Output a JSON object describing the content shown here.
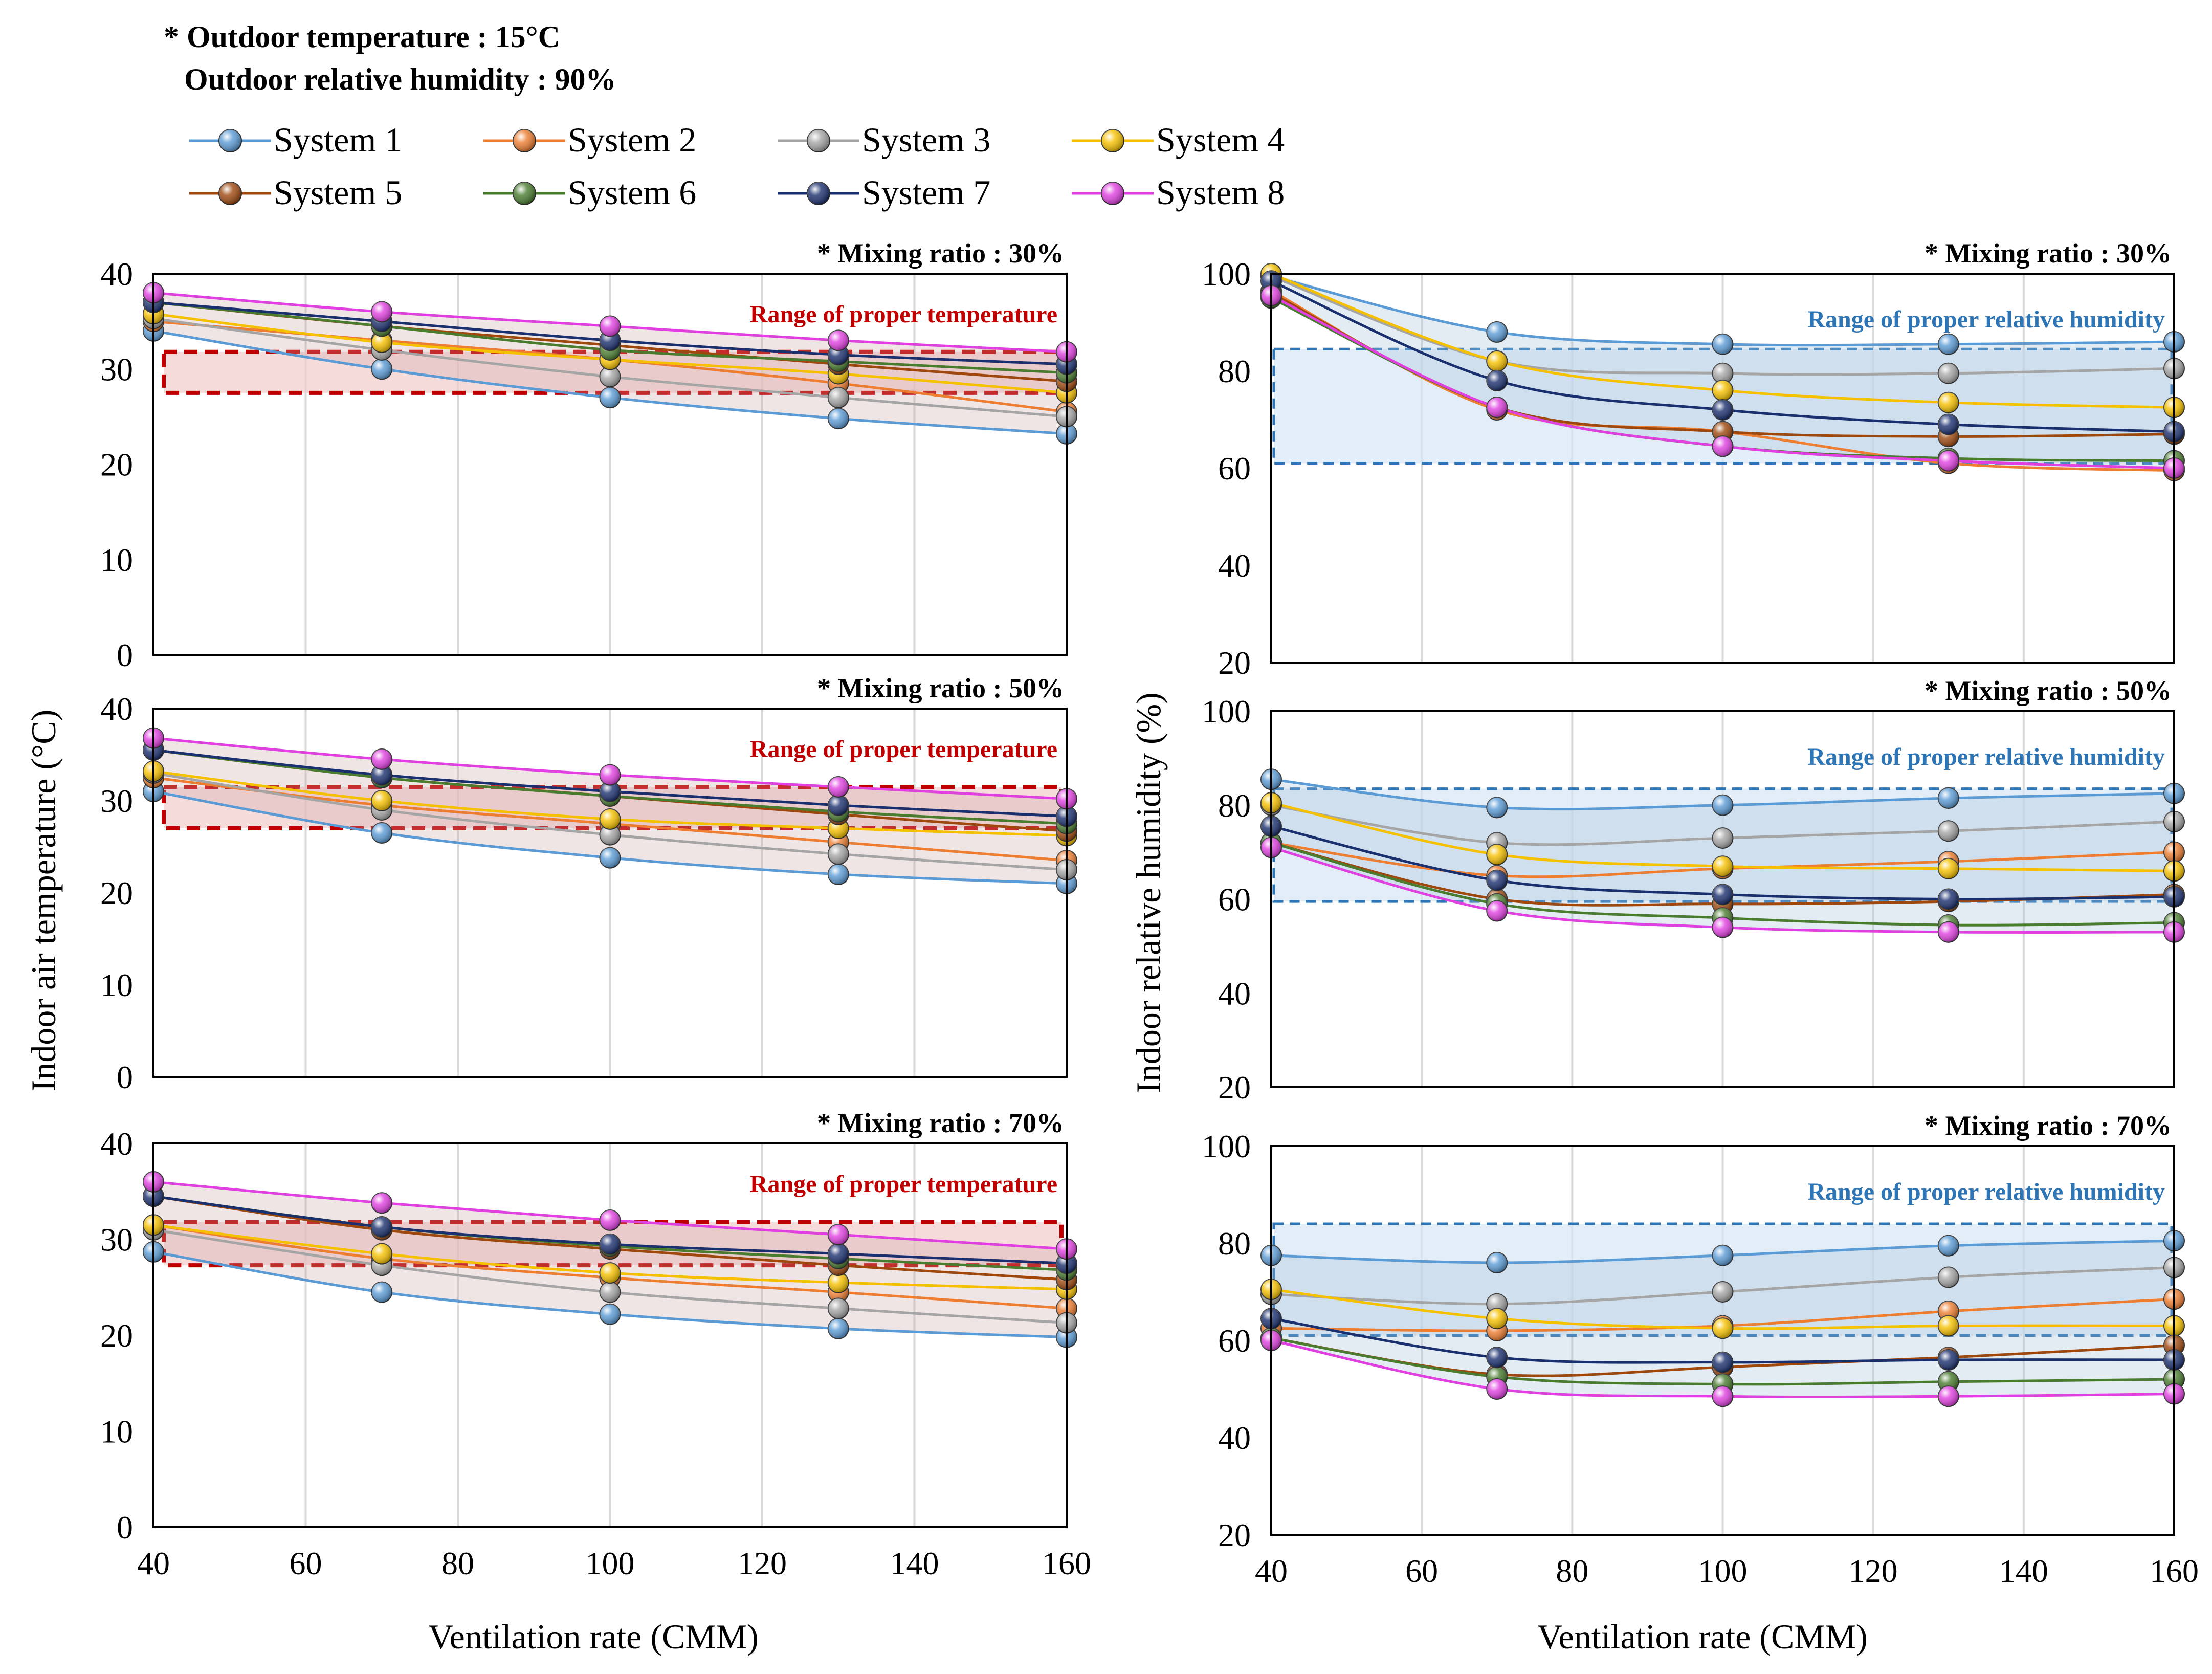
{
  "conditions": {
    "line1": "* Outdoor temperature : 15°C",
    "line2": "Outdoor relative humidity  : 90%"
  },
  "legend": [
    "System 1",
    "System 2",
    "System 3",
    "System 4",
    "System 5",
    "System 6",
    "System 7",
    "System 8"
  ],
  "colors": {
    "series": [
      "#5b9bd5",
      "#ed7d31",
      "#a5a5a5",
      "#f5c000",
      "#9e480e",
      "#4a7c2f",
      "#1a2f6e",
      "#e040e0"
    ],
    "temp_band_stroke": "#c00000",
    "temp_band_fill": "#f2cccc",
    "rh_band_stroke": "#2e75b6",
    "rh_band_fill": "#d6e5f4",
    "range_temp_label": "#c00000",
    "range_rh_label": "#2e75b6"
  },
  "axes": {
    "temp_ylabel": "Indoor air temperature (°C)",
    "rh_ylabel": "Indoor relative humidity (%)",
    "xlabel": "Ventilation rate (CMM)",
    "x_ticks": [
      "40",
      "60",
      "80",
      "100",
      "120",
      "140",
      "160"
    ],
    "temp_ticks": [
      "0",
      "10",
      "20",
      "30",
      "40"
    ],
    "rh_ticks": [
      "20",
      "40",
      "60",
      "80",
      "100"
    ]
  },
  "chart_data": [
    {
      "type": "line",
      "variable": "temperature",
      "title": "* Mixing ratio : 30%",
      "band_label": "Range of proper temperature",
      "band": [
        27.5,
        31.8
      ],
      "x": [
        40,
        70,
        100,
        130,
        160
      ],
      "xlim": [
        40,
        160
      ],
      "ylim": [
        0,
        40
      ],
      "series": [
        {
          "name": "System 1",
          "values": [
            34.0,
            30.0,
            27.0,
            24.8,
            23.2
          ]
        },
        {
          "name": "System 2",
          "values": [
            35.0,
            33.0,
            31.0,
            28.5,
            25.5
          ]
        },
        {
          "name": "System 3",
          "values": [
            35.3,
            32.0,
            29.2,
            27.0,
            25.0
          ]
        },
        {
          "name": "System 4",
          "values": [
            35.8,
            32.8,
            31.0,
            29.5,
            27.5
          ]
        },
        {
          "name": "System 5",
          "values": [
            37.0,
            34.5,
            32.5,
            30.5,
            28.7
          ]
        },
        {
          "name": "System 6",
          "values": [
            37.0,
            34.5,
            32.0,
            30.8,
            29.6
          ]
        },
        {
          "name": "System 7",
          "values": [
            37.0,
            35.0,
            33.0,
            31.5,
            30.5
          ]
        },
        {
          "name": "System 8",
          "values": [
            38.0,
            36.0,
            34.5,
            33.0,
            31.8
          ]
        }
      ]
    },
    {
      "type": "line",
      "variable": "temperature",
      "title": "* Mixing ratio : 50%",
      "band_label": "Range of proper temperature",
      "band": [
        27.0,
        31.5
      ],
      "x": [
        40,
        70,
        100,
        130,
        160
      ],
      "xlim": [
        40,
        160
      ],
      "ylim": [
        0,
        40
      ],
      "series": [
        {
          "name": "System 1",
          "values": [
            31.0,
            26.5,
            23.8,
            22.0,
            21.0
          ]
        },
        {
          "name": "System 2",
          "values": [
            32.5,
            29.5,
            27.5,
            25.5,
            23.5
          ]
        },
        {
          "name": "System 3",
          "values": [
            33.0,
            29.0,
            26.3,
            24.2,
            22.5
          ]
        },
        {
          "name": "System 4",
          "values": [
            33.2,
            30.0,
            28.0,
            27.0,
            26.2
          ]
        },
        {
          "name": "System 5",
          "values": [
            35.5,
            32.5,
            30.5,
            28.5,
            26.7
          ]
        },
        {
          "name": "System 6",
          "values": [
            35.5,
            32.5,
            30.5,
            28.8,
            27.5
          ]
        },
        {
          "name": "System 7",
          "values": [
            35.5,
            32.8,
            31.0,
            29.5,
            28.3
          ]
        },
        {
          "name": "System 8",
          "values": [
            36.8,
            34.5,
            32.8,
            31.5,
            30.2
          ]
        }
      ]
    },
    {
      "type": "line",
      "variable": "temperature",
      "title": "* Mixing ratio : 70%",
      "band_label": "Range of proper temperature",
      "band": [
        27.3,
        31.8
      ],
      "x": [
        40,
        70,
        100,
        130,
        160
      ],
      "xlim": [
        40,
        160
      ],
      "ylim": [
        0,
        40
      ],
      "series": [
        {
          "name": "System 1",
          "values": [
            28.7,
            24.5,
            22.2,
            20.7,
            19.8
          ]
        },
        {
          "name": "System 2",
          "values": [
            31.5,
            28.0,
            26.0,
            24.5,
            22.8
          ]
        },
        {
          "name": "System 3",
          "values": [
            31.0,
            27.3,
            24.5,
            22.8,
            21.3
          ]
        },
        {
          "name": "System 4",
          "values": [
            31.5,
            28.5,
            26.5,
            25.5,
            24.8
          ]
        },
        {
          "name": "System 5",
          "values": [
            34.5,
            31.0,
            29.0,
            27.3,
            25.8
          ]
        },
        {
          "name": "System 6",
          "values": [
            34.5,
            31.3,
            29.3,
            28.0,
            26.8
          ]
        },
        {
          "name": "System 7",
          "values": [
            34.5,
            31.3,
            29.5,
            28.5,
            27.5
          ]
        },
        {
          "name": "System 8",
          "values": [
            36.0,
            33.8,
            32.0,
            30.5,
            29.0
          ]
        }
      ]
    },
    {
      "type": "line",
      "variable": "relative_humidity",
      "title": "* Mixing ratio : 30%",
      "band_label": "Range of proper relative humidity",
      "band": [
        61,
        84.5
      ],
      "x": [
        40,
        70,
        100,
        130,
        160
      ],
      "xlim": [
        40,
        160
      ],
      "ylim": [
        20,
        100
      ],
      "series": [
        {
          "name": "System 1",
          "values": [
            99.5,
            88.0,
            85.5,
            85.5,
            86.0
          ]
        },
        {
          "name": "System 2",
          "values": [
            96.5,
            72.0,
            67.5,
            61.0,
            59.5
          ]
        },
        {
          "name": "System 3",
          "values": [
            99.5,
            82.0,
            79.5,
            79.5,
            80.5
          ]
        },
        {
          "name": "System 4",
          "values": [
            100.0,
            82.0,
            76.0,
            73.5,
            72.5
          ]
        },
        {
          "name": "System 5",
          "values": [
            96.0,
            72.5,
            67.5,
            66.5,
            67.0
          ]
        },
        {
          "name": "System 6",
          "values": [
            95.0,
            72.5,
            64.5,
            62.0,
            61.5
          ]
        },
        {
          "name": "System 7",
          "values": [
            98.5,
            78.0,
            72.0,
            69.0,
            67.5
          ]
        },
        {
          "name": "System 8",
          "values": [
            95.5,
            72.5,
            64.5,
            61.5,
            60.0
          ]
        }
      ]
    },
    {
      "type": "line",
      "variable": "relative_humidity",
      "title": "* Mixing ratio : 50%",
      "band_label": "Range of proper relative humidity",
      "band": [
        59.5,
        83.5
      ],
      "x": [
        40,
        70,
        100,
        130,
        160
      ],
      "xlim": [
        40,
        160
      ],
      "ylim": [
        20,
        100
      ],
      "series": [
        {
          "name": "System 1",
          "values": [
            85.5,
            79.5,
            80.0,
            81.5,
            82.5
          ]
        },
        {
          "name": "System 2",
          "values": [
            72.0,
            65.0,
            66.5,
            68.0,
            70.0
          ]
        },
        {
          "name": "System 3",
          "values": [
            80.0,
            72.0,
            73.0,
            74.5,
            76.5
          ]
        },
        {
          "name": "System 4",
          "values": [
            80.5,
            69.5,
            67.0,
            66.5,
            66.0
          ]
        },
        {
          "name": "System 5",
          "values": [
            72.0,
            60.0,
            59.0,
            59.5,
            61.0
          ]
        },
        {
          "name": "System 6",
          "values": [
            72.0,
            59.0,
            56.0,
            54.5,
            55.0
          ]
        },
        {
          "name": "System 7",
          "values": [
            75.5,
            64.0,
            61.0,
            60.0,
            60.5
          ]
        },
        {
          "name": "System 8",
          "values": [
            71.0,
            57.5,
            54.0,
            53.0,
            53.0
          ]
        }
      ]
    },
    {
      "type": "line",
      "variable": "relative_humidity",
      "title": "* Mixing ratio : 70%",
      "band_label": "Range of proper relative humidity",
      "band": [
        61,
        84
      ],
      "x": [
        40,
        70,
        100,
        130,
        160
      ],
      "xlim": [
        40,
        160
      ],
      "ylim": [
        20,
        100
      ],
      "series": [
        {
          "name": "System 1",
          "values": [
            77.5,
            76.0,
            77.5,
            79.5,
            80.5
          ]
        },
        {
          "name": "System 2",
          "values": [
            62.5,
            62.0,
            63.0,
            66.0,
            68.5
          ]
        },
        {
          "name": "System 3",
          "values": [
            69.5,
            67.5,
            70.0,
            73.0,
            75.0
          ]
        },
        {
          "name": "System 4",
          "values": [
            70.5,
            64.5,
            62.5,
            63.0,
            63.0
          ]
        },
        {
          "name": "System 5",
          "values": [
            60.5,
            53.0,
            54.5,
            56.5,
            59.0
          ]
        },
        {
          "name": "System 6",
          "values": [
            60.5,
            52.5,
            51.0,
            51.5,
            52.0
          ]
        },
        {
          "name": "System 7",
          "values": [
            64.5,
            56.5,
            55.5,
            56.0,
            56.0
          ]
        },
        {
          "name": "System 8",
          "values": [
            60.0,
            50.0,
            48.5,
            48.5,
            49.0
          ]
        }
      ]
    }
  ]
}
